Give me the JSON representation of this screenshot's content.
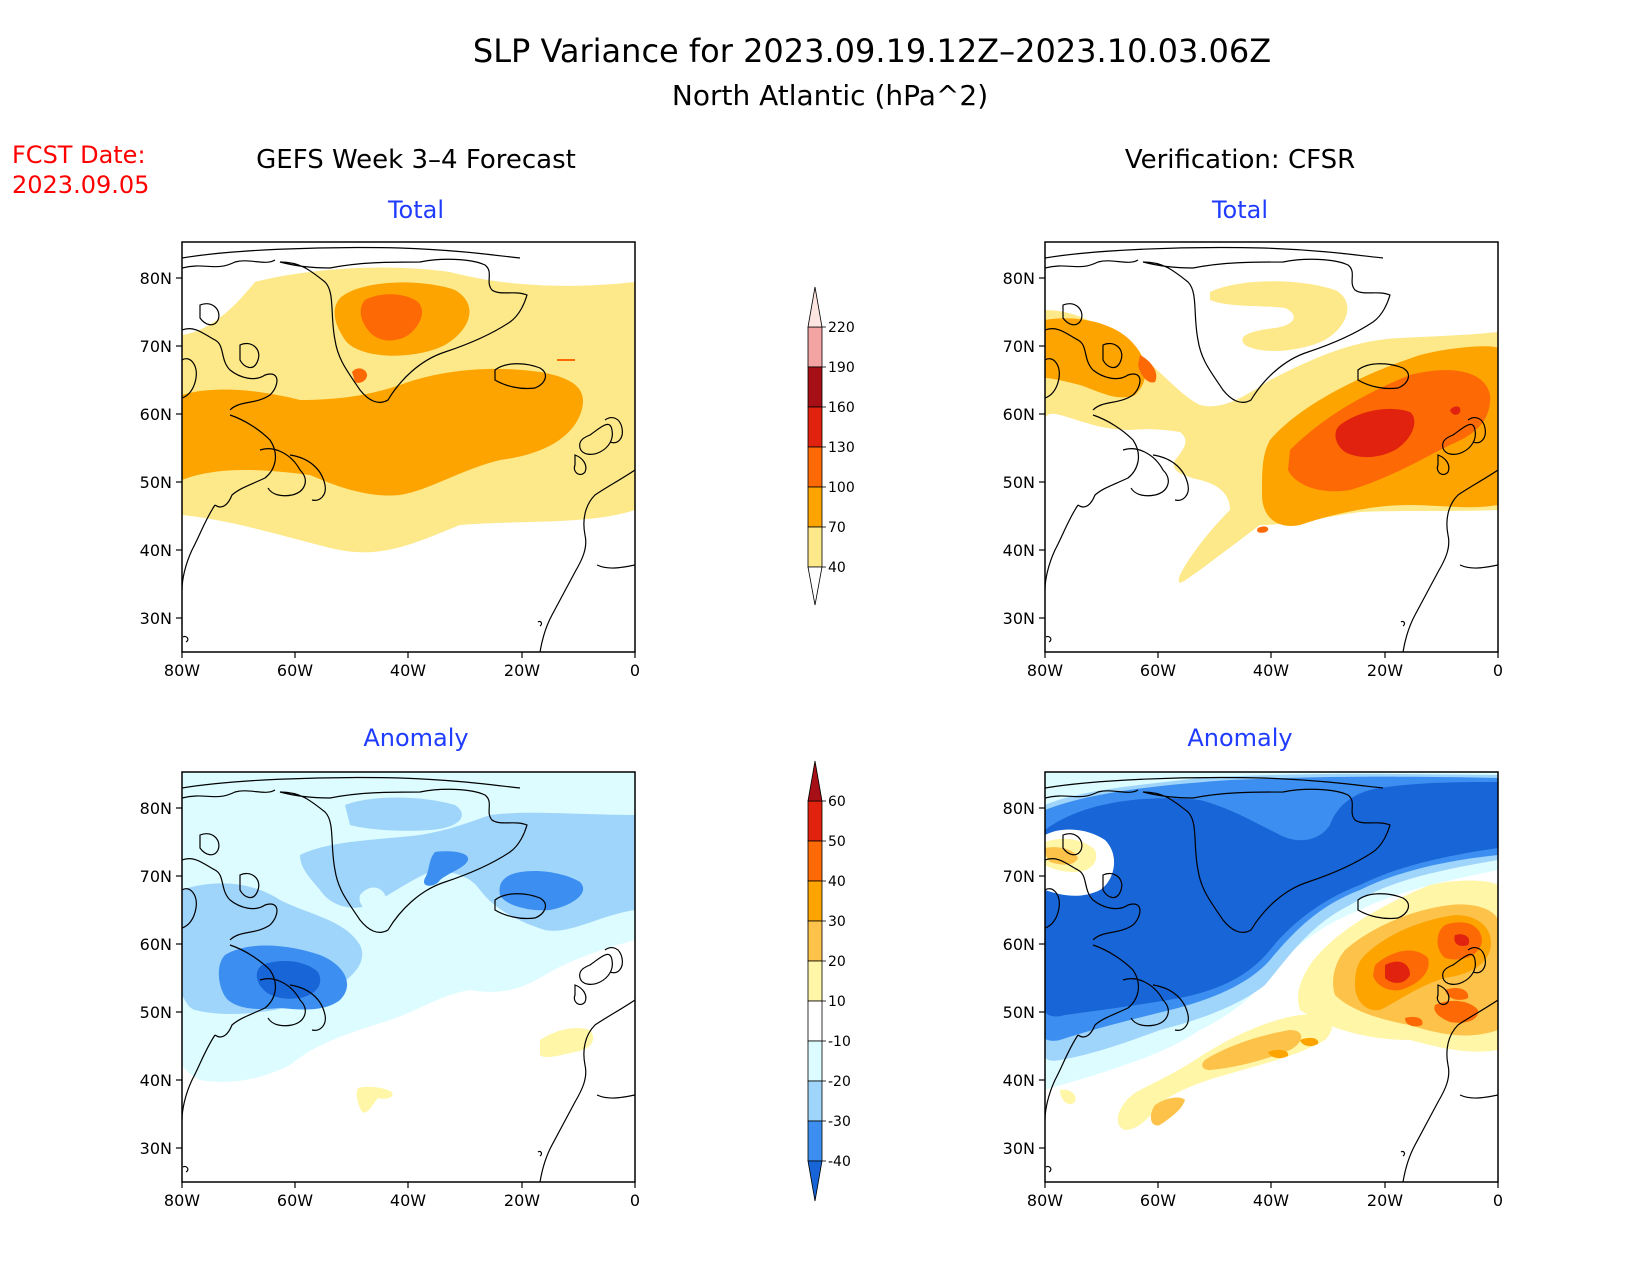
{
  "title": {
    "line1": "SLP Variance for 2023.09.19.12Z–2023.10.03.06Z",
    "line2": "North Atlantic (hPa^2)"
  },
  "fcst_date": {
    "label": "FCST Date:",
    "value": "2023.09.05"
  },
  "columns": {
    "left": "GEFS Week 3–4 Forecast",
    "right": "Verification: CFSR"
  },
  "panel_titles": {
    "top_left": "Total",
    "top_right": "Total",
    "bottom_left": "Anomaly",
    "bottom_right": "Anomaly"
  },
  "axes": {
    "lon_labels": [
      "80W",
      "60W",
      "40W",
      "20W",
      "0"
    ],
    "lat_labels": [
      "80N",
      "70N",
      "60N",
      "50N",
      "40N",
      "30N"
    ]
  },
  "colorbars": {
    "total": {
      "levels": [
        "220",
        "190",
        "160",
        "130",
        "100",
        "70",
        "40"
      ],
      "colors": [
        "#fde5e1",
        "#f4a3a3",
        "#a50f15",
        "#e0220e",
        "#fd6a05",
        "#fda400",
        "#fde98a"
      ]
    },
    "anomaly": {
      "levels": [
        "60",
        "50",
        "40",
        "30",
        "20",
        "10",
        "-10",
        "-20",
        "-30",
        "-40"
      ],
      "colors": [
        "#a50f15",
        "#e0220e",
        "#fd6a05",
        "#fda400",
        "#fdc24a",
        "#fff6a8",
        "#ffffff",
        "#dcfcff",
        "#9fd4fb",
        "#3c8ff0",
        "#1865d8"
      ]
    }
  },
  "colors": {
    "title_text": "#000000",
    "fcst_text": "#ff0000",
    "panel_title": "#1f3cff",
    "coast": "#000000"
  }
}
